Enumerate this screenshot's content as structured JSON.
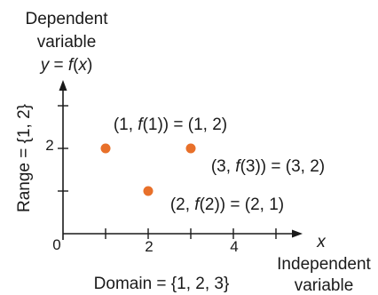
{
  "figure": {
    "y_axis_caption": [
      "Dependent",
      "variable"
    ],
    "y_axis_function": {
      "y": "y",
      "eq": " = ",
      "f": "f",
      "paren_open": "(",
      "x": "x",
      "paren_close": ")"
    },
    "x_axis_symbol": "x",
    "x_axis_caption": [
      "Independent",
      "variable"
    ],
    "range_label": "Range = {1, 2}",
    "domain_label": "Domain = {1, 2, 3}",
    "origin_label": "0",
    "x_tick_labels": [
      "2",
      "4"
    ],
    "y_tick_labels": [
      "2"
    ],
    "point_color": "#e8702a"
  },
  "chart_data": {
    "type": "scatter",
    "x": [
      1,
      2,
      3
    ],
    "y": [
      2,
      1,
      2
    ],
    "annotations": [
      {
        "x": 1,
        "y": 2,
        "pre": "(1, ",
        "f": "f",
        "post": "(1)) = (1, 2)"
      },
      {
        "x": 2,
        "y": 1,
        "pre": "(2, ",
        "f": "f",
        "post": "(2)) = (2, 1)"
      },
      {
        "x": 3,
        "y": 2,
        "pre": "(3, ",
        "f": "f",
        "post": "(3)) = (3, 2)"
      }
    ],
    "xlim": [
      0,
      5.5
    ],
    "ylim": [
      0,
      3.5
    ],
    "x_ticks": [
      1,
      2,
      3,
      4,
      5
    ],
    "y_ticks": [
      1,
      2,
      3
    ],
    "grid": false
  }
}
